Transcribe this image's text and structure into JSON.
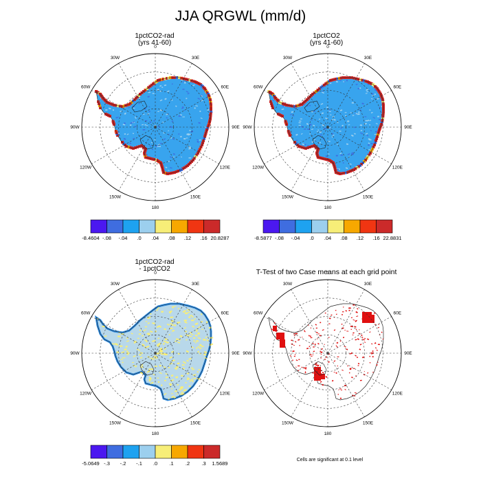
{
  "figure": {
    "title": "JJA QRGWL (mm/d)",
    "footnote": "Cells are significant at 0.1 level"
  },
  "panels": [
    {
      "id": "p1",
      "title_lines": [
        "1pctCO2-rad",
        "(yrs 41-60)"
      ],
      "colors": [
        "#4b18f0",
        "#3f6de0",
        "#1ea2f0",
        "#9ccfee",
        "#f7ee78",
        "#f7a800",
        "#f03512",
        "#cb2a2a"
      ],
      "colorbar_labels": [
        "-8.4604",
        "-.08",
        "-.04",
        ".0",
        ".04",
        ".08",
        ".12",
        ".16",
        "20.8287"
      ]
    },
    {
      "id": "p2",
      "title_lines": [
        "1pctCO2",
        "(yrs 41-60)"
      ],
      "colors": [
        "#4b18f0",
        "#3f6de0",
        "#1ea2f0",
        "#9ccfee",
        "#f7ee78",
        "#f7a800",
        "#f03512",
        "#cb2a2a"
      ],
      "colorbar_labels": [
        "-8.5877",
        "-.08",
        "-.04",
        ".0",
        ".04",
        ".08",
        ".12",
        ".16",
        "22.8831"
      ]
    },
    {
      "id": "p3",
      "title_lines": [
        "1pctCO2-rad",
        "- 1pctCO2"
      ],
      "colors": [
        "#4b18f0",
        "#3f6de0",
        "#1ea2f0",
        "#9ccfee",
        "#f7ee78",
        "#f7a800",
        "#f03512",
        "#cb2a2a"
      ],
      "colorbar_labels": [
        "-5.0649",
        "-.3",
        "-.2",
        "-.1",
        ".0",
        ".1",
        ".2",
        ".3",
        "1.5689"
      ]
    },
    {
      "id": "p4",
      "title_lines": [
        "T-Test of two Case means at each grid point"
      ],
      "significance_color": "#e01010"
    }
  ],
  "map": {
    "longitude_labels": [
      "0",
      "30E",
      "60E",
      "90E",
      "120E",
      "150E",
      "180",
      "150W",
      "120W",
      "90W",
      "60W",
      "30W"
    ],
    "land_color_p1_p2": "#38a4ee",
    "land_color_p3": "#b8d8ea",
    "coast_color_p1_p2": "#d42020",
    "coast_color_p3": "#2f8fe6"
  }
}
